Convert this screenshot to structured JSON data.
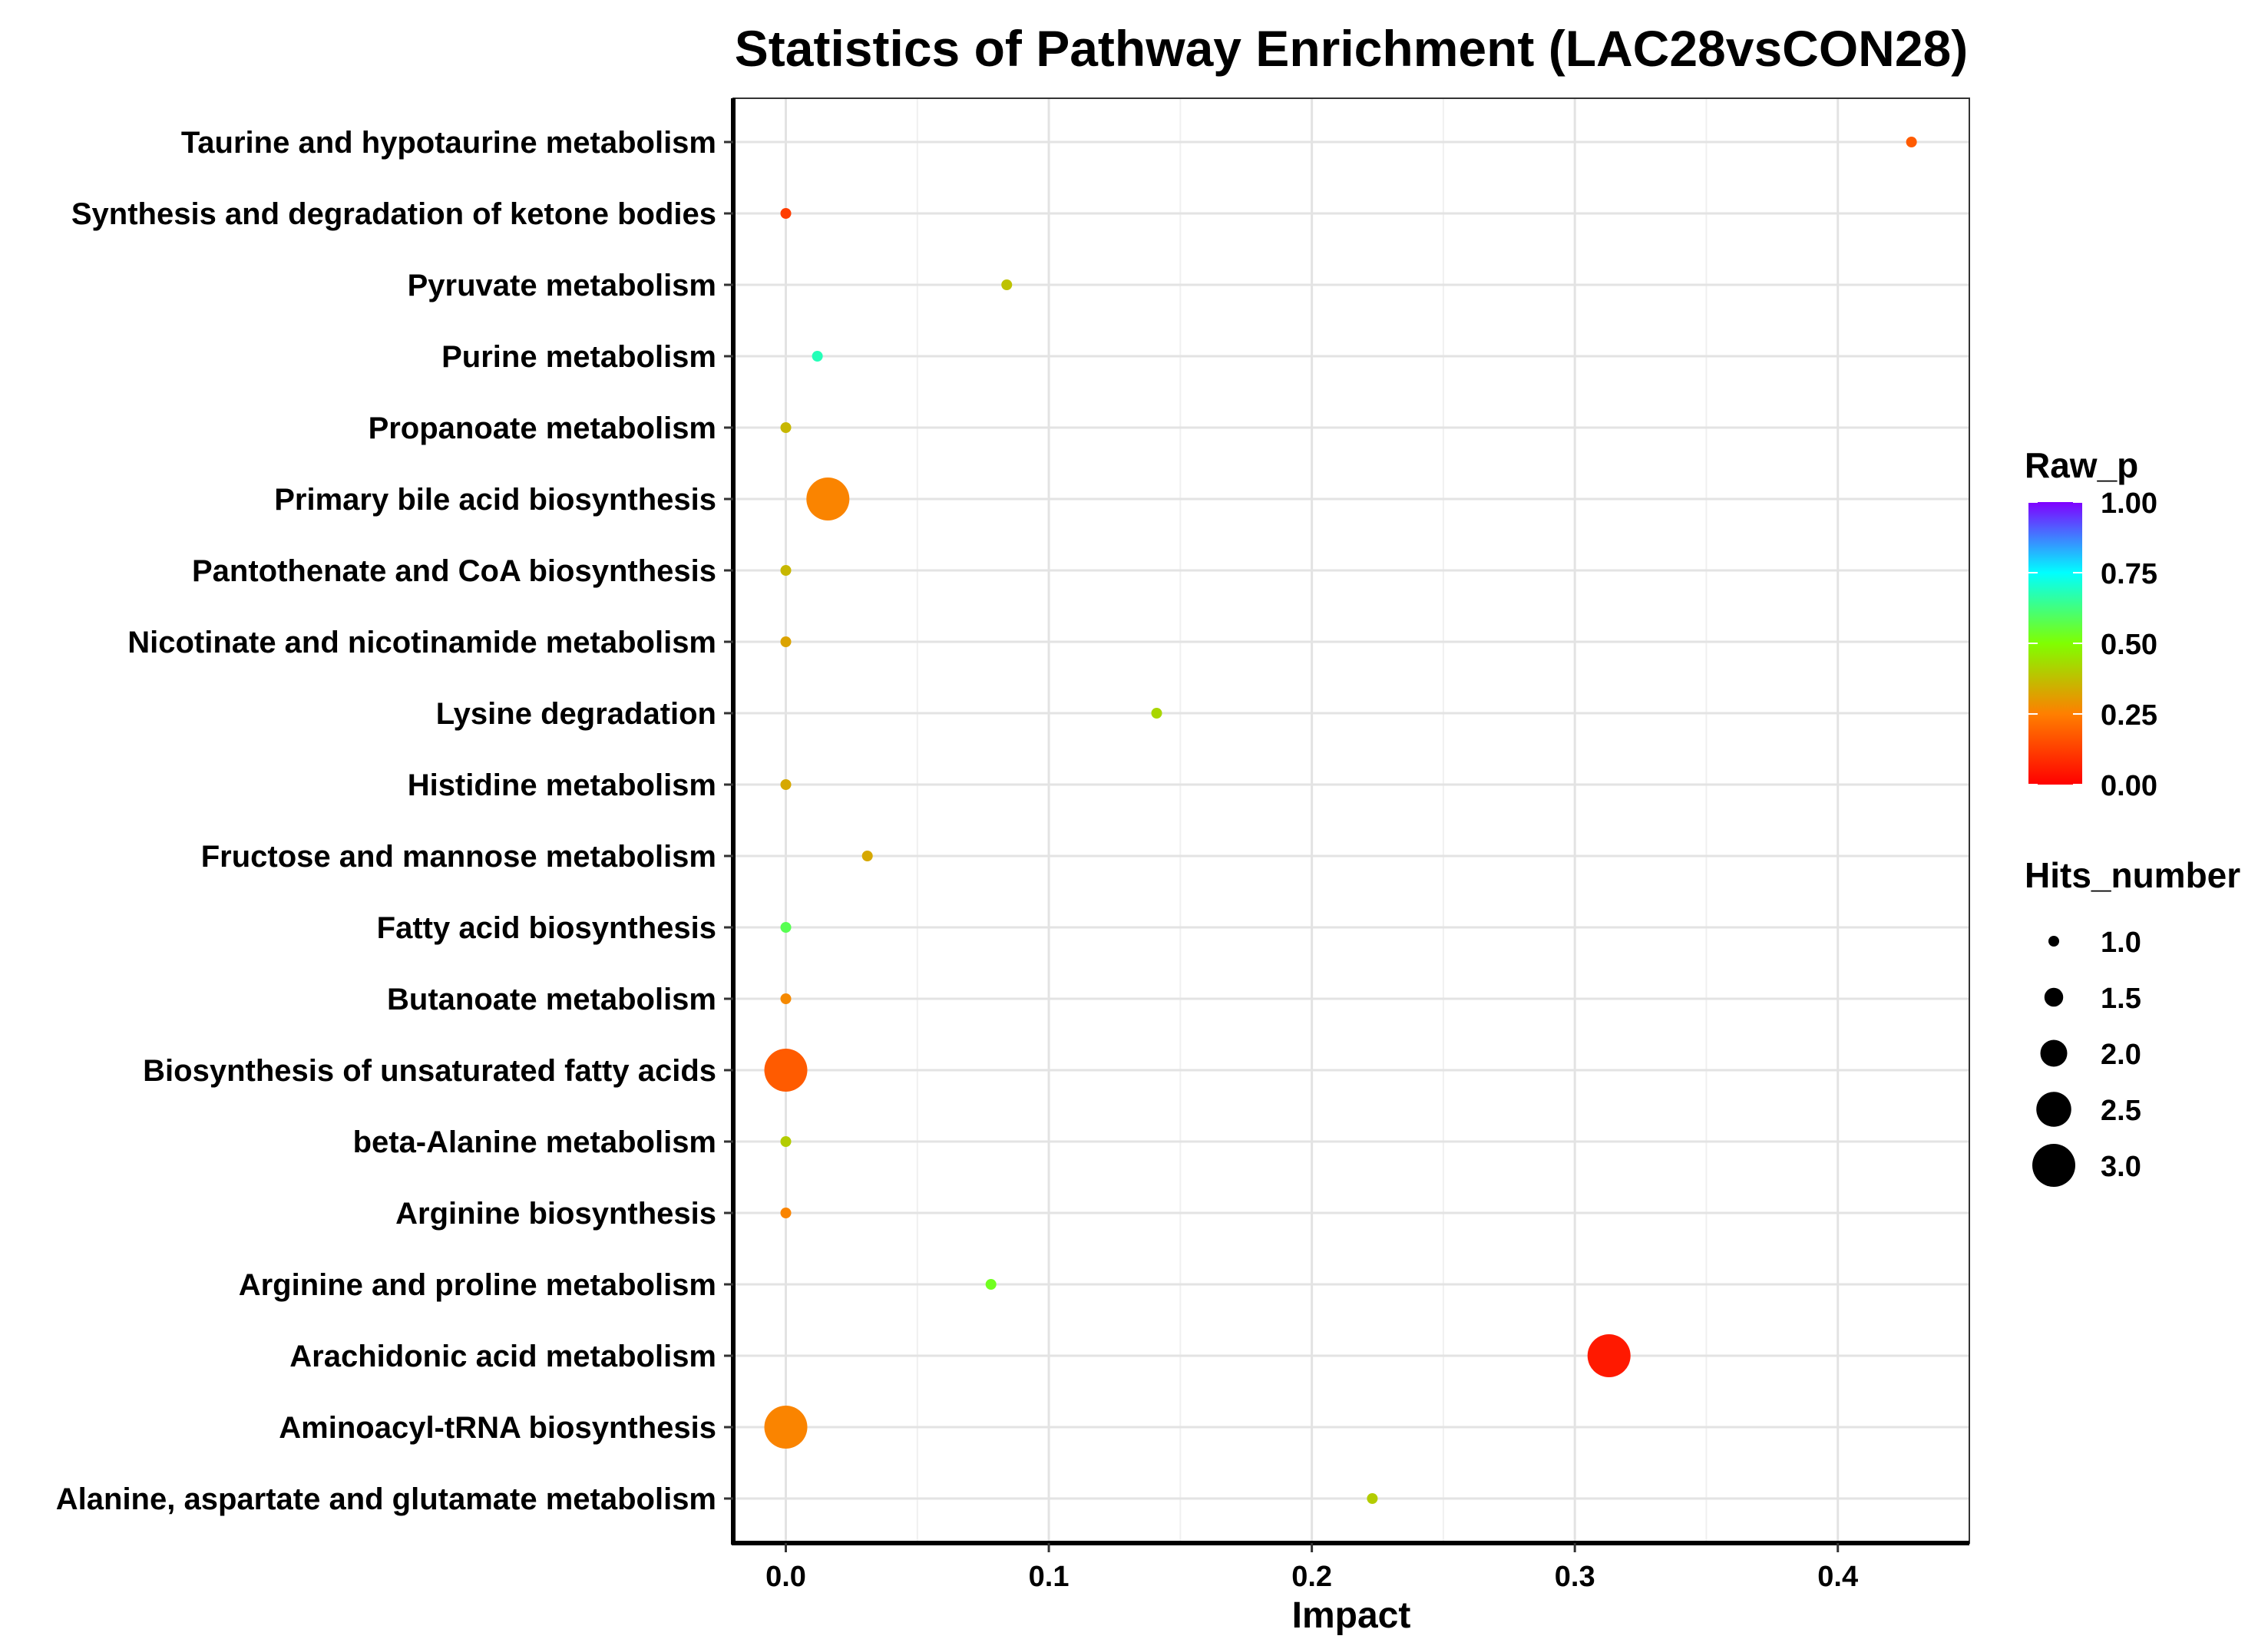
{
  "chart_data": {
    "type": "scatter",
    "title": "Statistics of Pathway Enrichment (LAC28vsCON28)",
    "xlabel": "Impact",
    "ylabel": "",
    "xlim": [
      -0.02,
      0.45
    ],
    "xticks": [
      0.0,
      0.1,
      0.2,
      0.3,
      0.4
    ],
    "xtick_labels": [
      "0.0",
      "0.1",
      "0.2",
      "0.3",
      "0.4"
    ],
    "grid": true,
    "points": [
      {
        "pathway": "Taurine and hypotaurine metabolism",
        "impact": 0.428,
        "raw_p": 0.18,
        "hits": 1
      },
      {
        "pathway": "Synthesis and degradation of ketone bodies",
        "impact": 0.0,
        "raw_p": 0.12,
        "hits": 1
      },
      {
        "pathway": "Pyruvate metabolism",
        "impact": 0.084,
        "raw_p": 0.38,
        "hits": 1
      },
      {
        "pathway": "Purine metabolism",
        "impact": 0.012,
        "raw_p": 0.68,
        "hits": 1
      },
      {
        "pathway": "Propanoate metabolism",
        "impact": 0.0,
        "raw_p": 0.36,
        "hits": 1
      },
      {
        "pathway": "Primary bile acid biosynthesis",
        "impact": 0.016,
        "raw_p": 0.26,
        "hits": 3
      },
      {
        "pathway": "Pantothenate and CoA biosynthesis",
        "impact": 0.0,
        "raw_p": 0.36,
        "hits": 1
      },
      {
        "pathway": "Nicotinate and nicotinamide metabolism",
        "impact": 0.0,
        "raw_p": 0.32,
        "hits": 1
      },
      {
        "pathway": "Lysine degradation",
        "impact": 0.141,
        "raw_p": 0.42,
        "hits": 1
      },
      {
        "pathway": "Histidine metabolism",
        "impact": 0.0,
        "raw_p": 0.33,
        "hits": 1
      },
      {
        "pathway": "Fructose and mannose metabolism",
        "impact": 0.031,
        "raw_p": 0.33,
        "hits": 1
      },
      {
        "pathway": "Fatty acid biosynthesis",
        "impact": 0.0,
        "raw_p": 0.58,
        "hits": 1
      },
      {
        "pathway": "Butanoate metabolism",
        "impact": 0.0,
        "raw_p": 0.27,
        "hits": 1
      },
      {
        "pathway": "Biosynthesis of unsaturated fatty acids",
        "impact": 0.0,
        "raw_p": 0.18,
        "hits": 3
      },
      {
        "pathway": "beta-Alanine metabolism",
        "impact": 0.0,
        "raw_p": 0.4,
        "hits": 1
      },
      {
        "pathway": "Arginine biosynthesis",
        "impact": 0.0,
        "raw_p": 0.26,
        "hits": 1
      },
      {
        "pathway": "Arginine and proline metabolism",
        "impact": 0.078,
        "raw_p": 0.53,
        "hits": 1
      },
      {
        "pathway": "Arachidonic acid metabolism",
        "impact": 0.313,
        "raw_p": 0.05,
        "hits": 3
      },
      {
        "pathway": "Aminoacyl-tRNA biosynthesis",
        "impact": 0.0,
        "raw_p": 0.26,
        "hits": 3
      },
      {
        "pathway": "Alanine, aspartate and glutamate metabolism",
        "impact": 0.223,
        "raw_p": 0.4,
        "hits": 1
      }
    ],
    "color_legend": {
      "title": "Raw_p",
      "ticks": [
        "1.00",
        "0.75",
        "0.50",
        "0.25",
        "0.00"
      ],
      "tick_values": [
        1.0,
        0.75,
        0.5,
        0.25,
        0.0
      ],
      "gradient_colors": [
        "#ff0000",
        "#ff7f00",
        "#80ff00",
        "#00ffff",
        "#8000ff"
      ]
    },
    "size_legend": {
      "title": "Hits_number",
      "labels": [
        "1.0",
        "1.5",
        "2.0",
        "2.5",
        "3.0"
      ],
      "values": [
        1.0,
        1.5,
        2.0,
        2.5,
        3.0
      ]
    }
  }
}
